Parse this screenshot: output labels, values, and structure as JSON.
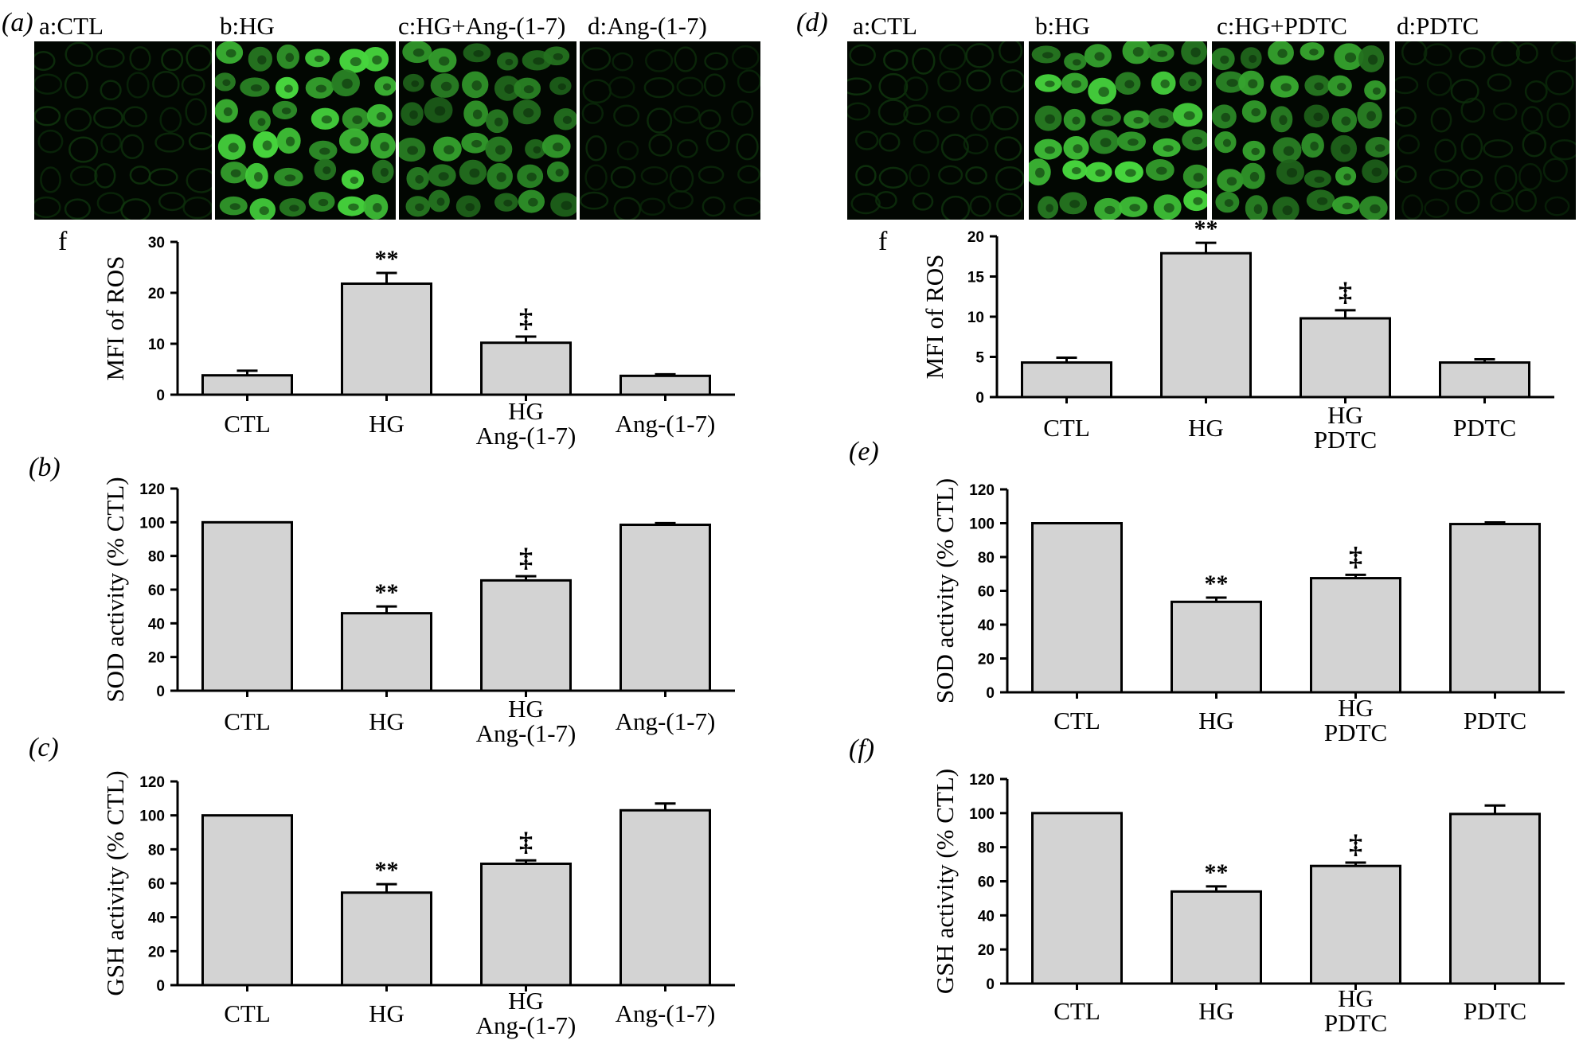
{
  "colors": {
    "bar_fill": "#d3d3d3",
    "stroke": "#000000",
    "cell_green": "#5fd35a",
    "image_background": "#020702"
  },
  "left": {
    "panel_labels": {
      "a": "(a)",
      "b": "(b)",
      "c": "(c)"
    },
    "image_labels": [
      "a:CTL",
      "b:HG",
      "c:HG+Ang-(1-7)",
      "d:Ang-(1-7)"
    ],
    "image_brightness": [
      0.2,
      1.0,
      0.7,
      0.15
    ],
    "sublabel_f": "f"
  },
  "right": {
    "panel_labels": {
      "d": "(d)",
      "e": "(e)",
      "f": "(f)"
    },
    "image_labels": [
      "a:CTL",
      "b:HG",
      "c:HG+PDTC",
      "d:PDTC"
    ],
    "image_brightness": [
      0.2,
      1.0,
      0.75,
      0.15
    ],
    "sublabel_f": "f"
  },
  "chart_data": [
    {
      "id": "ros-left",
      "type": "bar",
      "categories": [
        [
          "CTL"
        ],
        [
          "HG"
        ],
        [
          "HG",
          "Ang-(1-7)"
        ],
        [
          "Ang-(1-7)"
        ]
      ],
      "values": [
        3.8,
        21.8,
        10.2,
        3.7
      ],
      "errors": [
        0.9,
        2.1,
        1.2,
        0.3
      ],
      "annotations": [
        "",
        "**",
        "‡",
        ""
      ],
      "ylabel": "MFI of ROS",
      "ylim": [
        0,
        30
      ],
      "yticks": [
        "0",
        "10",
        "20",
        "30"
      ],
      "tick_values": [
        0,
        10,
        20,
        30
      ]
    },
    {
      "id": "sod-left",
      "type": "bar",
      "categories": [
        [
          "CTL"
        ],
        [
          "HG"
        ],
        [
          "HG",
          "Ang-(1-7)"
        ],
        [
          "Ang-(1-7)"
        ]
      ],
      "values": [
        100,
        46,
        65.5,
        98.5
      ],
      "errors": [
        0,
        4,
        2.5,
        1
      ],
      "annotations": [
        "",
        "**",
        "‡",
        ""
      ],
      "ylabel": "SOD activity (% CTL)",
      "ylim": [
        0,
        120
      ],
      "yticks": [
        "0",
        "20",
        "40",
        "60",
        "80",
        "100",
        "120"
      ],
      "tick_values": [
        0,
        20,
        40,
        60,
        80,
        100,
        120
      ]
    },
    {
      "id": "gsh-left",
      "type": "bar",
      "categories": [
        [
          "CTL"
        ],
        [
          "HG"
        ],
        [
          "HG",
          "Ang-(1-7)"
        ],
        [
          "Ang-(1-7)"
        ]
      ],
      "values": [
        100,
        54.5,
        71.5,
        103
      ],
      "errors": [
        0,
        5,
        2,
        4
      ],
      "annotations": [
        "",
        "**",
        "‡",
        ""
      ],
      "ylabel": "GSH activity (% CTL)",
      "ylim": [
        0,
        120
      ],
      "yticks": [
        "0",
        "20",
        "40",
        "60",
        "80",
        "100",
        "120"
      ],
      "tick_values": [
        0,
        20,
        40,
        60,
        80,
        100,
        120
      ]
    },
    {
      "id": "ros-right",
      "type": "bar",
      "categories": [
        [
          "CTL"
        ],
        [
          "HG"
        ],
        [
          "HG",
          "PDTC"
        ],
        [
          "PDTC"
        ]
      ],
      "values": [
        4.3,
        17.9,
        9.8,
        4.3
      ],
      "errors": [
        0.6,
        1.3,
        1.0,
        0.4
      ],
      "annotations": [
        "",
        "**",
        "‡",
        ""
      ],
      "ylabel": "MFI of ROS",
      "ylim": [
        0,
        20
      ],
      "yticks": [
        "0",
        "5",
        "10",
        "15",
        "20"
      ],
      "tick_values": [
        0,
        5,
        10,
        15,
        20
      ]
    },
    {
      "id": "sod-right",
      "type": "bar",
      "categories": [
        [
          "CTL"
        ],
        [
          "HG"
        ],
        [
          "HG",
          "PDTC"
        ],
        [
          "PDTC"
        ]
      ],
      "values": [
        100,
        53.5,
        67.5,
        99.5
      ],
      "errors": [
        0,
        2.5,
        2,
        1
      ],
      "annotations": [
        "",
        "**",
        "‡",
        ""
      ],
      "ylabel": "SOD activity (% CTL)",
      "ylim": [
        0,
        120
      ],
      "yticks": [
        "0",
        "20",
        "40",
        "60",
        "80",
        "100",
        "120"
      ],
      "tick_values": [
        0,
        20,
        40,
        60,
        80,
        100,
        120
      ]
    },
    {
      "id": "gsh-right",
      "type": "bar",
      "categories": [
        [
          "CTL"
        ],
        [
          "HG"
        ],
        [
          "HG",
          "PDTC"
        ],
        [
          "PDTC"
        ]
      ],
      "values": [
        100,
        54,
        69,
        99.5
      ],
      "errors": [
        0,
        3,
        2,
        5
      ],
      "annotations": [
        "",
        "**",
        "‡",
        ""
      ],
      "ylabel": "GSH activity (% CTL)",
      "ylim": [
        0,
        120
      ],
      "yticks": [
        "0",
        "20",
        "40",
        "60",
        "80",
        "100",
        "120"
      ],
      "tick_values": [
        0,
        20,
        40,
        60,
        80,
        100,
        120
      ]
    }
  ]
}
